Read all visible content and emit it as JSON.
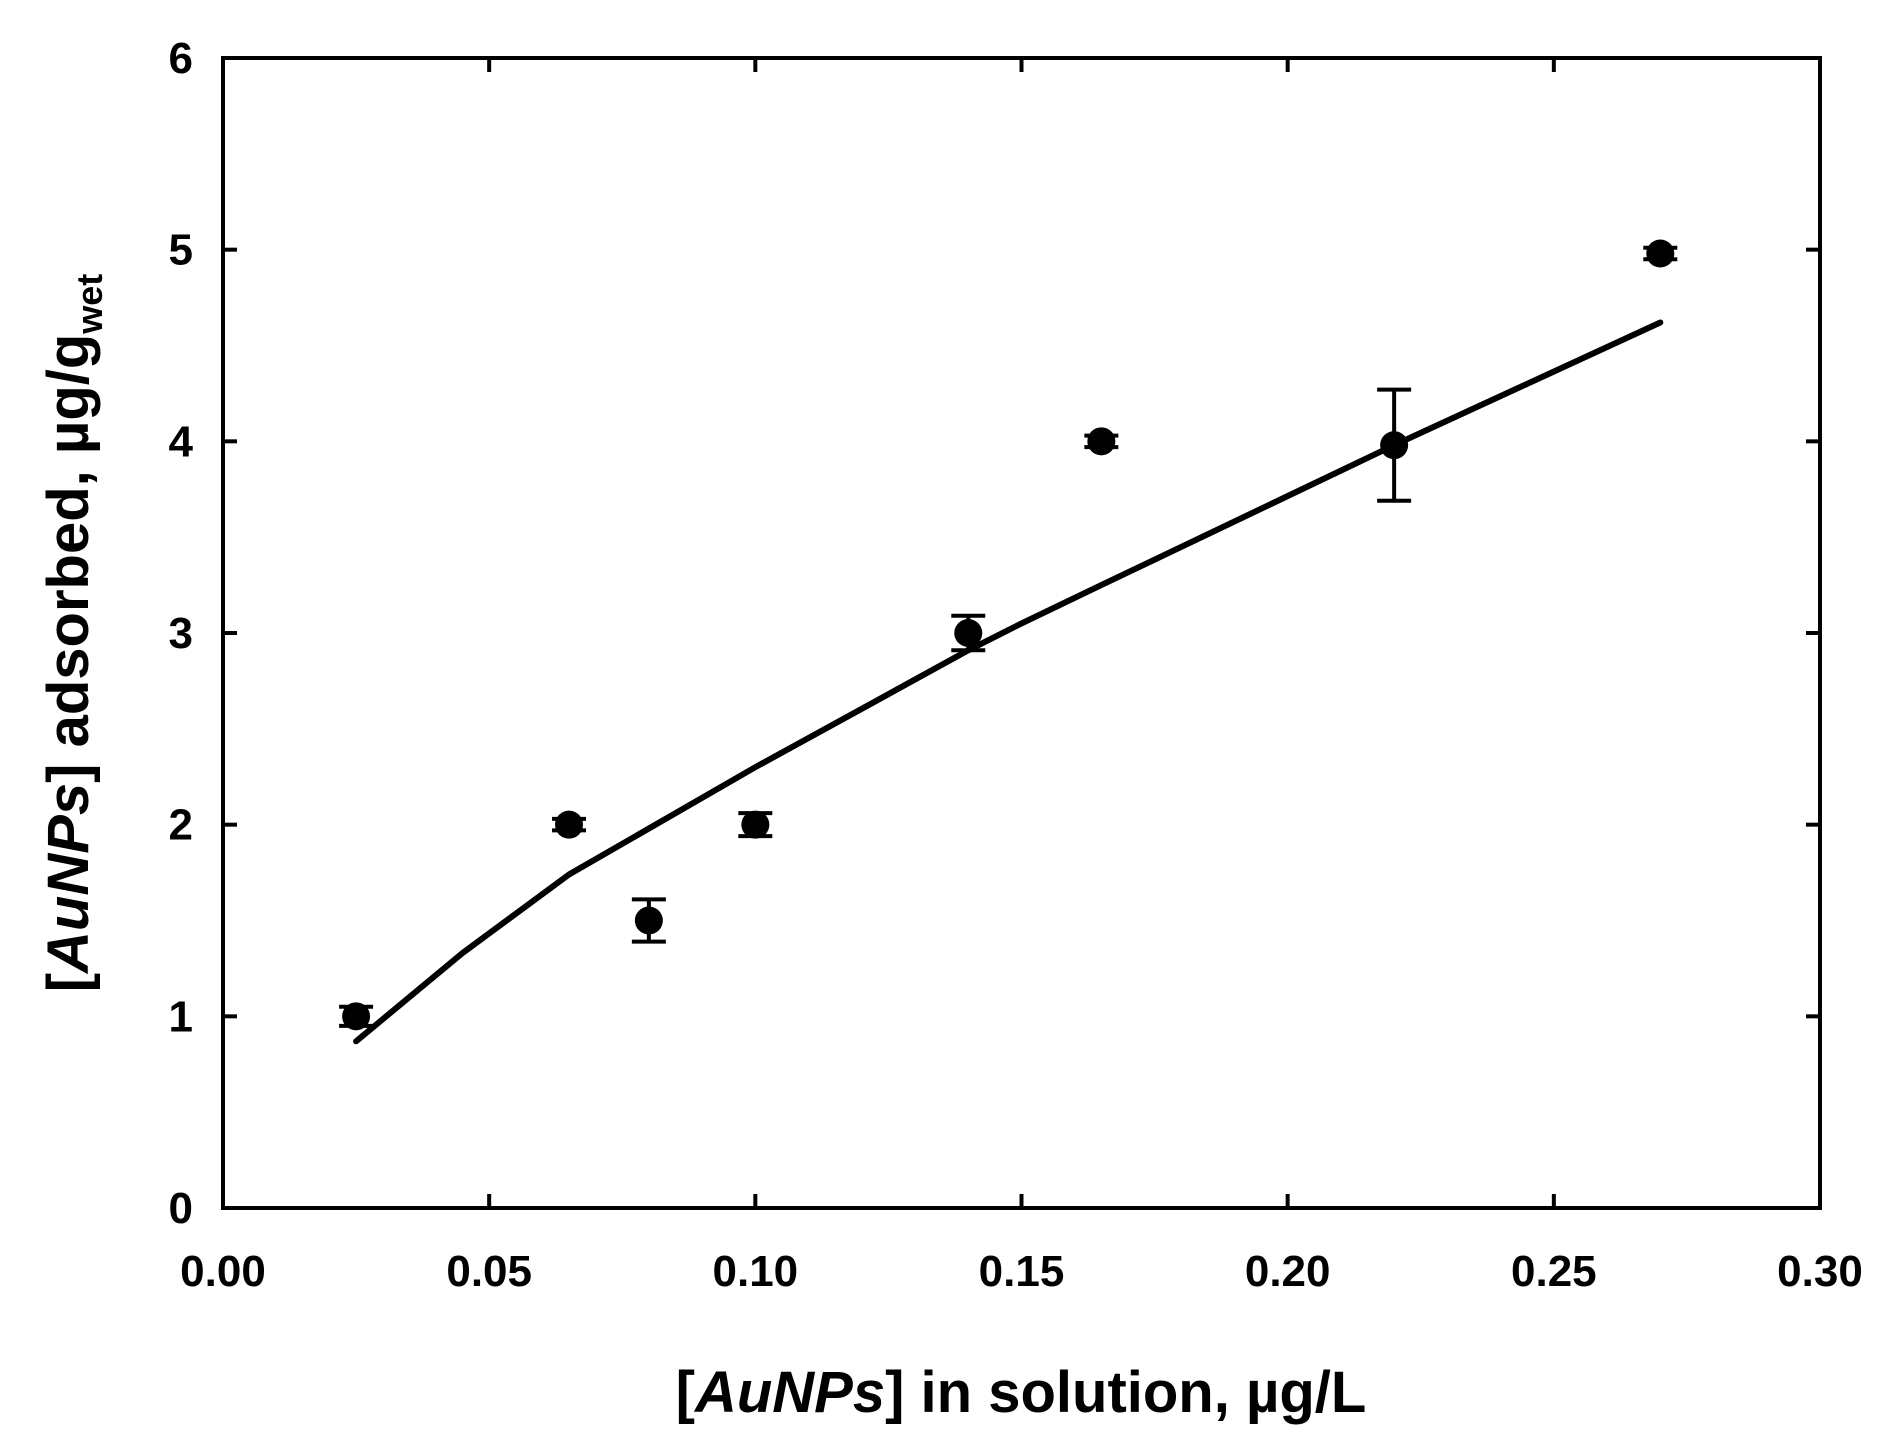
{
  "chart_data": {
    "type": "scatter",
    "x_label_parts": [
      "[",
      "AuNPs",
      "] in solution, µg/L"
    ],
    "y_label_parts": [
      "[",
      "AuNPs",
      "] adsorbed, µg/g",
      "wet"
    ],
    "xlim": [
      0,
      0.3
    ],
    "ylim": [
      0,
      6
    ],
    "x_ticks": [
      "0.00",
      "0.05",
      "0.10",
      "0.15",
      "0.20",
      "0.25",
      "0.30"
    ],
    "y_ticks": [
      "0",
      "1",
      "2",
      "3",
      "4",
      "5",
      "6"
    ],
    "grid": false,
    "points": [
      {
        "x": 0.025,
        "y": 1.0,
        "err": 0.05
      },
      {
        "x": 0.065,
        "y": 2.0,
        "err": 0.03
      },
      {
        "x": 0.08,
        "y": 1.5,
        "err": 0.11
      },
      {
        "x": 0.1,
        "y": 2.0,
        "err": 0.06
      },
      {
        "x": 0.14,
        "y": 3.0,
        "err": 0.09
      },
      {
        "x": 0.165,
        "y": 4.0,
        "err": 0.03
      },
      {
        "x": 0.22,
        "y": 3.98,
        "err": 0.29
      },
      {
        "x": 0.27,
        "y": 4.98,
        "err": 0.03
      }
    ],
    "fit_line": [
      {
        "x": 0.025,
        "y": 0.87
      },
      {
        "x": 0.045,
        "y": 1.33
      },
      {
        "x": 0.065,
        "y": 1.74
      },
      {
        "x": 0.075,
        "y": 1.9
      },
      {
        "x": 0.1,
        "y": 2.3
      },
      {
        "x": 0.14,
        "y": 2.91
      },
      {
        "x": 0.15,
        "y": 3.05
      },
      {
        "x": 0.165,
        "y": 3.25
      },
      {
        "x": 0.22,
        "y": 3.98
      },
      {
        "x": 0.27,
        "y": 4.62
      }
    ]
  }
}
